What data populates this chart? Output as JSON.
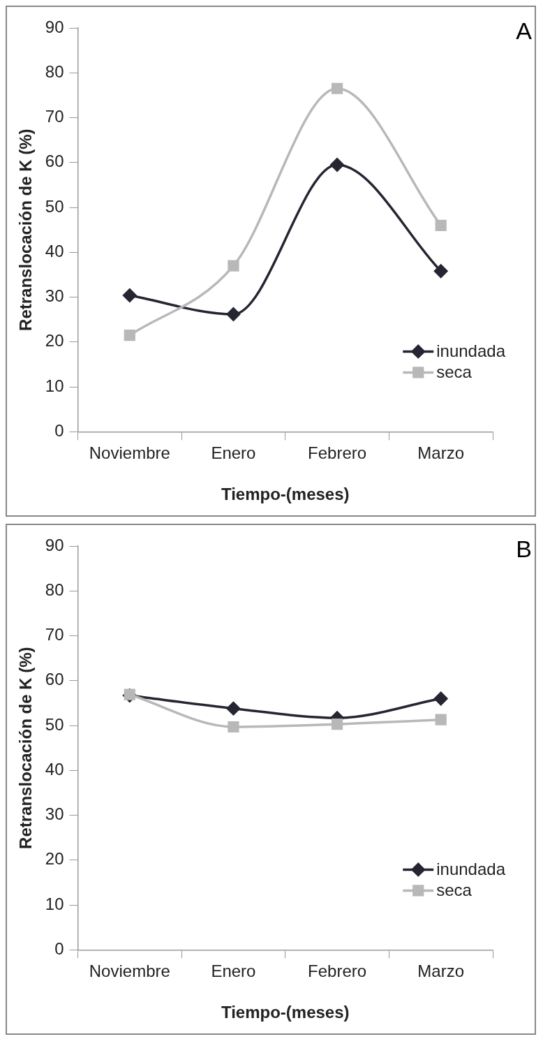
{
  "chart_data": [
    {
      "type": "line",
      "categories": [
        "Noviembre",
        "Enero",
        "Febrero",
        "Marzo"
      ],
      "xlabel": "Tiempo-(meses)",
      "ylabel": "Retranslocación de K (%)",
      "ylim": [
        0,
        90
      ],
      "yticks": [
        0,
        10,
        20,
        30,
        40,
        50,
        60,
        70,
        80,
        90
      ],
      "grid": false,
      "legend": "bottom right",
      "annotations": [
        "A"
      ],
      "series": [
        {
          "name": "inundada",
          "color": "#262633",
          "marker": "diamond",
          "values": [
            30.4,
            26.2,
            59.5,
            35.8
          ]
        },
        {
          "name": "seca",
          "color": "#b8b8b8",
          "marker": "square",
          "values": [
            21.5,
            37,
            76.5,
            46
          ]
        }
      ]
    },
    {
      "type": "line",
      "categories": [
        "Noviembre",
        "Enero",
        "Febrero",
        "Marzo"
      ],
      "xlabel": "Tiempo-(meses)",
      "ylabel": "Retranslocación de K (%)",
      "ylim": [
        0,
        90
      ],
      "yticks": [
        0,
        10,
        20,
        30,
        40,
        50,
        60,
        70,
        80,
        90
      ],
      "grid": false,
      "legend": "bottom right",
      "annotations": [
        "B"
      ],
      "series": [
        {
          "name": "inundada",
          "color": "#262633",
          "marker": "diamond",
          "values": [
            56.7,
            53.8,
            51.7,
            56
          ]
        },
        {
          "name": "seca",
          "color": "#b8b8b8",
          "marker": "square",
          "values": [
            56.9,
            49.7,
            50.3,
            51.3
          ]
        }
      ]
    }
  ]
}
